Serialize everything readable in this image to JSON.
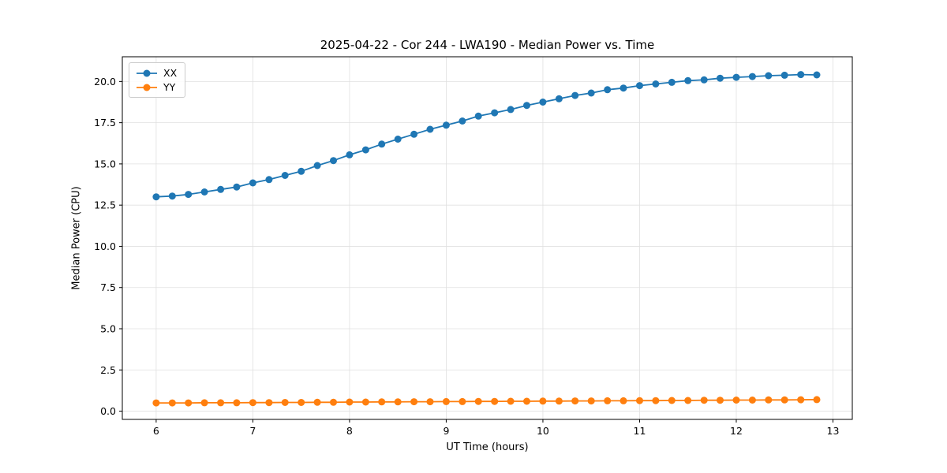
{
  "chart_data": {
    "type": "line",
    "title": "2025-04-22 - Cor 244 - LWA190 - Median Power vs. Time",
    "xlabel": "UT Time (hours)",
    "ylabel": "Median Power (CPU)",
    "xlim": [
      5.65,
      13.2
    ],
    "ylim": [
      -0.5,
      21.5
    ],
    "xticks": [
      6,
      7,
      8,
      9,
      10,
      11,
      12,
      13
    ],
    "yticks": [
      0.0,
      2.5,
      5.0,
      7.5,
      10.0,
      12.5,
      15.0,
      17.5,
      20.0
    ],
    "grid": true,
    "legend_position": "upper left",
    "x": [
      6.0,
      6.167,
      6.333,
      6.5,
      6.667,
      6.833,
      7.0,
      7.167,
      7.333,
      7.5,
      7.667,
      7.833,
      8.0,
      8.167,
      8.333,
      8.5,
      8.667,
      8.833,
      9.0,
      9.167,
      9.333,
      9.5,
      9.667,
      9.833,
      10.0,
      10.167,
      10.333,
      10.5,
      10.667,
      10.833,
      11.0,
      11.167,
      11.333,
      11.5,
      11.667,
      11.833,
      12.0,
      12.167,
      12.333,
      12.5,
      12.667,
      12.833
    ],
    "series": [
      {
        "name": "XX",
        "color": "#1f77b4",
        "values": [
          13.0,
          13.05,
          13.15,
          13.3,
          13.45,
          13.6,
          13.85,
          14.05,
          14.3,
          14.55,
          14.9,
          15.2,
          15.55,
          15.85,
          16.2,
          16.5,
          16.8,
          17.1,
          17.35,
          17.6,
          17.9,
          18.1,
          18.3,
          18.55,
          18.75,
          18.95,
          19.15,
          19.3,
          19.5,
          19.6,
          19.75,
          19.85,
          19.95,
          20.05,
          20.1,
          20.2,
          20.25,
          20.3,
          20.35,
          20.38,
          20.42,
          20.4
        ]
      },
      {
        "name": "YY",
        "color": "#ff7f0e",
        "values": [
          0.5,
          0.5,
          0.5,
          0.51,
          0.51,
          0.51,
          0.52,
          0.52,
          0.53,
          0.53,
          0.54,
          0.54,
          0.55,
          0.55,
          0.56,
          0.56,
          0.57,
          0.57,
          0.58,
          0.58,
          0.59,
          0.59,
          0.6,
          0.6,
          0.61,
          0.61,
          0.62,
          0.62,
          0.63,
          0.63,
          0.64,
          0.64,
          0.65,
          0.65,
          0.66,
          0.66,
          0.67,
          0.67,
          0.68,
          0.68,
          0.69,
          0.7
        ]
      }
    ],
    "style": {
      "grid_color": "#e0e0e0",
      "frame_color": "#000000",
      "tick_label_color": "#000000",
      "marker_radius": 4.5,
      "line_width": 1.8
    }
  }
}
